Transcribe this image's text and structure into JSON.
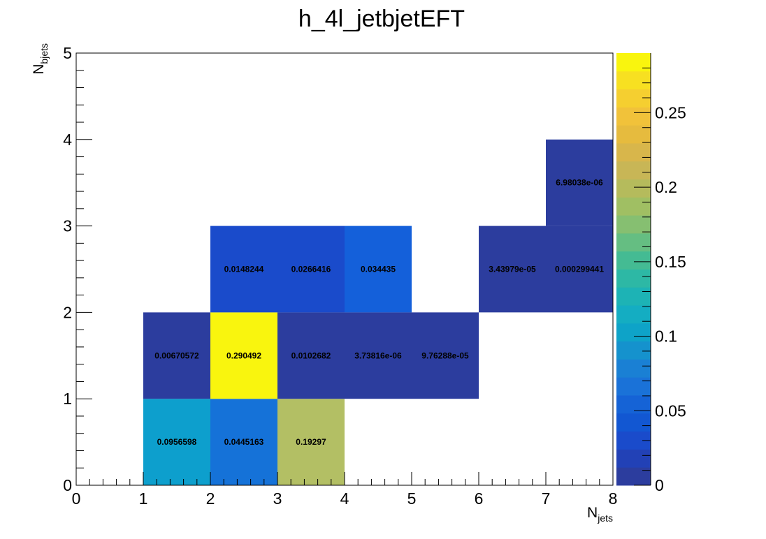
{
  "chart_data": {
    "type": "heatmap",
    "title": "h_4l_jetbjetEFT",
    "xlabel": {
      "main": "N",
      "sub": "jets"
    },
    "ylabel": {
      "main": "N",
      "sub": "bjets"
    },
    "xlim": [
      0,
      8
    ],
    "ylim": [
      0,
      5
    ],
    "x_ticks": [
      "0",
      "1",
      "2",
      "3",
      "4",
      "5",
      "6",
      "7",
      "8"
    ],
    "y_ticks": [
      "0",
      "1",
      "2",
      "3",
      "4",
      "5"
    ],
    "colorbar": {
      "range": [
        0,
        0.29
      ],
      "ticks": [
        "0",
        "0.05",
        "0.1",
        "0.15",
        "0.2",
        "0.25"
      ],
      "tick_values": [
        0,
        0.05,
        0.1,
        0.15,
        0.2,
        0.25
      ],
      "palette": [
        "#2c3d9e",
        "#2241b6",
        "#1a4bcb",
        "#1257d2",
        "#1563d6",
        "#1a72d8",
        "#1a80d4",
        "#1592cd",
        "#0ea3c8",
        "#14adc2",
        "#1db3b5",
        "#2db8a5",
        "#44bb93",
        "#65be82",
        "#86bf71",
        "#a0bf63",
        "#b5bb5c",
        "#c8b656",
        "#d8b64b",
        "#e6bb3e",
        "#f1c23a",
        "#f5cf30",
        "#f7e021",
        "#f9f50e"
      ],
      "grid": "off",
      "placement": "right"
    },
    "cells": [
      {
        "x": 1,
        "y": 0,
        "value": 0.0956598,
        "label": "0.0956598",
        "color": "#0d9fcd"
      },
      {
        "x": 2,
        "y": 0,
        "value": 0.0445163,
        "label": "0.0445163",
        "color": "#1572d8"
      },
      {
        "x": 3,
        "y": 0,
        "value": 0.19297,
        "label": "0.19297",
        "color": "#b3bf64"
      },
      {
        "x": 1,
        "y": 1,
        "value": 0.00670572,
        "label": "0.00670572",
        "color": "#2c3d9e"
      },
      {
        "x": 2,
        "y": 1,
        "value": 0.290492,
        "label": "0.290492",
        "color": "#f9f50e"
      },
      {
        "x": 3,
        "y": 1,
        "value": 0.0102682,
        "label": "0.0102682",
        "color": "#2c3d9e"
      },
      {
        "x": 4,
        "y": 1,
        "value": 3.73816e-06,
        "label": "3.73816e-06",
        "color": "#2c3d9e"
      },
      {
        "x": 5,
        "y": 1,
        "value": 9.76288e-05,
        "label": "9.76288e-05",
        "color": "#2c3d9e"
      },
      {
        "x": 2,
        "y": 2,
        "value": 0.0148244,
        "label": "0.0148244",
        "color": "#1a4bcb"
      },
      {
        "x": 3,
        "y": 2,
        "value": 0.0266416,
        "label": "0.0266416",
        "color": "#1a4bcb"
      },
      {
        "x": 4,
        "y": 2,
        "value": 0.034435,
        "label": "0.034435",
        "color": "#1460da"
      },
      {
        "x": 6,
        "y": 2,
        "value": 3.43979e-05,
        "label": "3.43979e-05",
        "color": "#2c3d9e"
      },
      {
        "x": 7,
        "y": 2,
        "value": 0.000299441,
        "label": "0.000299441",
        "color": "#2c3d9e"
      },
      {
        "x": 7,
        "y": 3,
        "value": 6.98038e-06,
        "label": "6.98038e-06",
        "color": "#2c3d9e"
      }
    ]
  }
}
